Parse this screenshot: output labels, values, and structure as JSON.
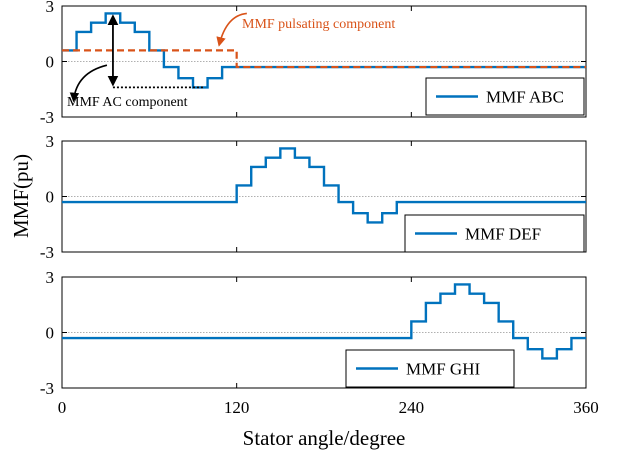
{
  "figure": {
    "ylabel": "MMF(pu)",
    "xlabel": "Stator angle/degree",
    "xticks": [
      0,
      120,
      240,
      360
    ],
    "xtick_labels": [
      "0",
      "120",
      "240",
      "360"
    ],
    "yticks": [
      -3,
      0,
      3
    ],
    "ytick_labels": [
      "-3",
      "0",
      "3"
    ]
  },
  "colors": {
    "series": "#0072BD",
    "pulsating": "#D95319",
    "axis": "#000000",
    "zero_line": "#b0b0b0"
  },
  "annotations": {
    "pulsating_label": "MMF pulsating component",
    "ac_label": "MMF AC component"
  },
  "chart_data": [
    {
      "type": "line",
      "panel": "top",
      "xlim": [
        0,
        360
      ],
      "ylim": [
        -3,
        3
      ],
      "legend_position": "bottom-right",
      "series": [
        {
          "name": "MMF ABC",
          "x": [
            0,
            10,
            10,
            20,
            20,
            30,
            30,
            40,
            40,
            50,
            50,
            60,
            60,
            70,
            70,
            80,
            80,
            90,
            90,
            100,
            100,
            110,
            110,
            120,
            120,
            360
          ],
          "y": [
            0.6,
            0.6,
            1.6,
            1.6,
            2.1,
            2.1,
            2.6,
            2.6,
            2.1,
            2.1,
            1.6,
            1.6,
            0.6,
            0.6,
            -0.3,
            -0.3,
            -0.9,
            -0.9,
            -1.4,
            -1.4,
            -0.9,
            -0.9,
            -0.3,
            -0.3,
            -0.3,
            -0.3
          ],
          "dashed": false
        },
        {
          "name": "",
          "x": [
            0,
            120,
            120,
            360
          ],
          "y": [
            0.6,
            0.6,
            -0.3,
            -0.3
          ],
          "dashed": true
        }
      ],
      "annotation_levels": {
        "max": 2.6,
        "min": -1.4,
        "pulsating": 0.6
      }
    },
    {
      "type": "line",
      "panel": "middle",
      "xlim": [
        0,
        360
      ],
      "ylim": [
        -3,
        3
      ],
      "legend_position": "bottom-right",
      "series": [
        {
          "name": "MMF DEF",
          "x": [
            0,
            120,
            120,
            130,
            130,
            140,
            140,
            150,
            150,
            160,
            160,
            170,
            170,
            180,
            180,
            190,
            190,
            200,
            200,
            210,
            210,
            220,
            220,
            230,
            230,
            240,
            240,
            360
          ],
          "y": [
            -0.3,
            -0.3,
            0.6,
            0.6,
            1.6,
            1.6,
            2.1,
            2.1,
            2.6,
            2.6,
            2.1,
            2.1,
            1.6,
            1.6,
            0.6,
            0.6,
            -0.3,
            -0.3,
            -0.9,
            -0.9,
            -1.4,
            -1.4,
            -0.9,
            -0.9,
            -0.3,
            -0.3,
            -0.3,
            -0.3
          ],
          "dashed": false
        }
      ]
    },
    {
      "type": "line",
      "panel": "bottom",
      "xlim": [
        0,
        360
      ],
      "ylim": [
        -3,
        3
      ],
      "legend_position": "bottom-center",
      "series": [
        {
          "name": "MMF GHI",
          "x": [
            0,
            240,
            240,
            250,
            250,
            260,
            260,
            270,
            270,
            280,
            280,
            290,
            290,
            300,
            300,
            310,
            310,
            320,
            320,
            330,
            330,
            340,
            340,
            350,
            350,
            360
          ],
          "y": [
            -0.3,
            -0.3,
            0.6,
            0.6,
            1.6,
            1.6,
            2.1,
            2.1,
            2.6,
            2.6,
            2.1,
            2.1,
            1.6,
            1.6,
            0.6,
            0.6,
            -0.3,
            -0.3,
            -0.9,
            -0.9,
            -1.4,
            -1.4,
            -0.9,
            -0.9,
            -0.3,
            -0.3
          ],
          "dashed": false
        }
      ]
    }
  ]
}
